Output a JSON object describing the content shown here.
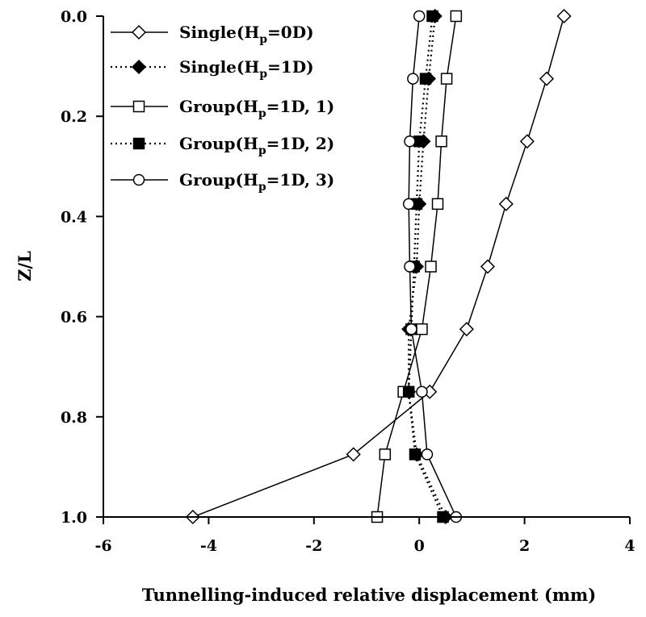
{
  "chart_data": {
    "type": "line",
    "xlabel": "Tunnelling-induced relative displacement (mm)",
    "ylabel": "Z/L",
    "xlim": [
      -6,
      4
    ],
    "ylim": [
      0.0,
      1.0
    ],
    "y_inverted": true,
    "x_ticks": [
      "-6",
      "-4",
      "-2",
      "0",
      "2",
      "4"
    ],
    "y_ticks": [
      "0.0",
      "0.2",
      "0.4",
      "0.6",
      "0.8",
      "1.0"
    ],
    "grid": false,
    "legend_position": "top-left",
    "y": [
      0.0,
      0.125,
      0.25,
      0.375,
      0.5,
      0.625,
      0.75,
      0.875,
      1.0
    ],
    "series": [
      {
        "name": "Single(Hp=0D)",
        "legend_main": "Single(H",
        "legend_sub": "p",
        "legend_rest": "=0D)",
        "line": "solid",
        "marker": "diamond",
        "filled": false,
        "x": [
          2.75,
          2.42,
          2.05,
          1.65,
          1.3,
          0.9,
          0.2,
          -1.25,
          -4.3
        ]
      },
      {
        "name": "Single(Hp=1D)",
        "legend_main": "Single(H",
        "legend_sub": "p",
        "legend_rest": "=1D)",
        "line": "dotted",
        "marker": "diamond",
        "filled": true,
        "x": [
          0.3,
          0.18,
          0.08,
          0.0,
          -0.05,
          -0.2,
          -0.2,
          -0.05,
          0.5
        ]
      },
      {
        "name": "Group(Hp=1D, 1)",
        "legend_main": "Group(H",
        "legend_sub": "p",
        "legend_rest": "=1D, 1)",
        "line": "solid",
        "marker": "square",
        "filled": false,
        "x": [
          0.7,
          0.52,
          0.42,
          0.35,
          0.22,
          0.05,
          -0.3,
          -0.65,
          -0.8
        ]
      },
      {
        "name": "Group(Hp=1D, 2)",
        "legend_main": "Group(H",
        "legend_sub": "p",
        "legend_rest": "=1D, 2)",
        "line": "dotted",
        "marker": "square",
        "filled": true,
        "x": [
          0.25,
          0.12,
          0.0,
          -0.05,
          -0.1,
          -0.15,
          -0.2,
          -0.08,
          0.45
        ]
      },
      {
        "name": "Group(Hp=1D, 3)",
        "legend_main": "Group(H",
        "legend_sub": "p",
        "legend_rest": "=1D, 3)",
        "line": "solid",
        "marker": "circle",
        "filled": false,
        "x": [
          0.0,
          -0.12,
          -0.18,
          -0.2,
          -0.18,
          -0.15,
          0.05,
          0.15,
          0.7
        ]
      }
    ]
  }
}
